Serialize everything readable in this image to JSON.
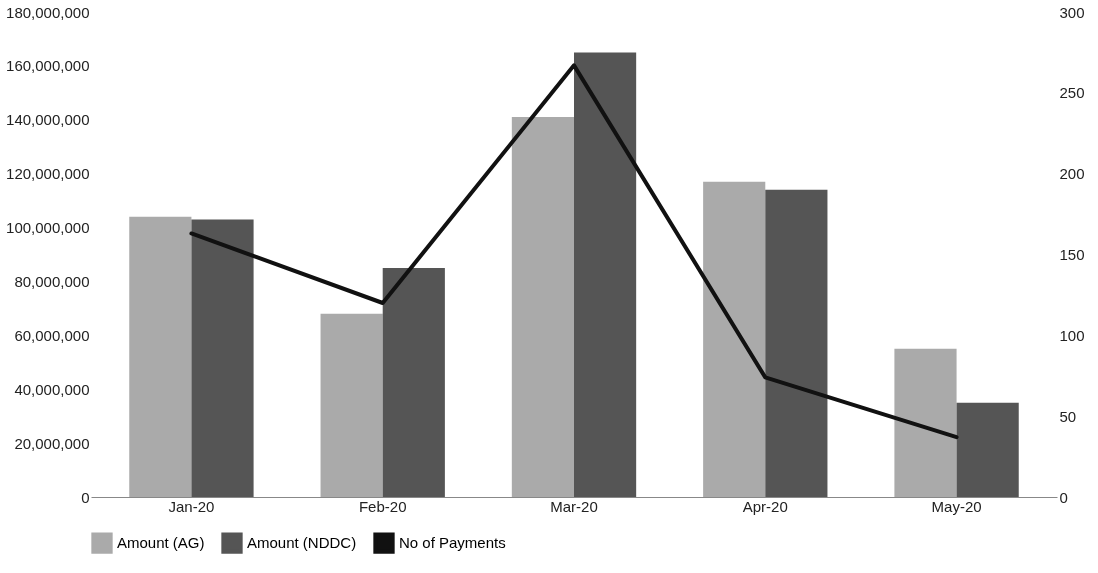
{
  "chart_data": {
    "type": "bar",
    "categories": [
      "Jan-20",
      "Feb-20",
      "Mar-20",
      "Apr-20",
      "May-20"
    ],
    "series": [
      {
        "name": "Amount (AG)",
        "color": "#aaaaaa",
        "values": [
          104000000,
          68000000,
          141000000,
          117000000,
          55000000
        ]
      },
      {
        "name": "Amount (NDDC)",
        "color": "#555555",
        "values": [
          103000000,
          85000000,
          165000000,
          114000000,
          35000000
        ]
      },
      {
        "name": "No of Payments",
        "color": "#111111",
        "type": "line",
        "axis": "y2",
        "values": [
          163,
          120,
          267,
          74,
          37
        ]
      }
    ],
    "ylim": [
      0,
      180000000
    ],
    "yticks": [
      0,
      {
        "value": 20000000,
        "label": "20,000,000"
      },
      {
        "value": 40000000,
        "label": "40,000,000"
      },
      {
        "value": 60000000,
        "label": "60,000,000"
      },
      {
        "value": 80000000,
        "label": "80,000,000"
      },
      {
        "value": 100000000,
        "label": "100,000,000"
      },
      {
        "value": 120000000,
        "label": "120,000,000"
      },
      {
        "value": 140000000,
        "label": "140,000,000"
      },
      {
        "value": 160000000,
        "label": "160,000,000"
      },
      {
        "value": 180000000,
        "label": "180,000,000"
      }
    ],
    "y2lim": [
      0,
      300
    ],
    "y2ticks": [
      0,
      50,
      100,
      150,
      200,
      250,
      300
    ],
    "grid": false,
    "legend": "bottom",
    "marker": "none",
    "line_style": "solid"
  }
}
